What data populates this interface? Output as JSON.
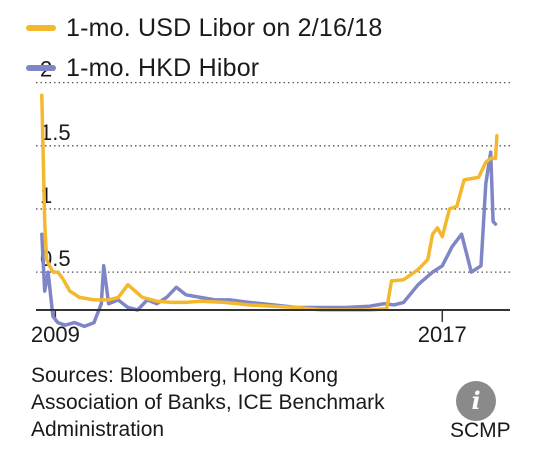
{
  "chart_data": {
    "type": "line",
    "title": "",
    "xlabel": "",
    "ylabel": "",
    "ylim": [
      0.2,
      2.1
    ],
    "xlim": [
      2008.6,
      2018.4
    ],
    "yticks": [
      0.5,
      1,
      1.5,
      2
    ],
    "xticks": [
      2009,
      2017
    ],
    "grid": "horizontal dotted",
    "legend_position": "top-left",
    "series": [
      {
        "name": "1-mo. USD Libor on 2/16/18",
        "color": "#f4b82e",
        "x": [
          2008.72,
          2008.78,
          2008.82,
          2008.88,
          2008.95,
          2009.05,
          2009.15,
          2009.3,
          2009.5,
          2009.8,
          2010.1,
          2010.3,
          2010.5,
          2010.8,
          2011.1,
          2011.4,
          2011.7,
          2012.0,
          2012.5,
          2013.0,
          2013.5,
          2014.0,
          2014.5,
          2015.0,
          2015.5,
          2015.85,
          2015.95,
          2016.2,
          2016.5,
          2016.7,
          2016.8,
          2016.9,
          2017.0,
          2017.15,
          2017.3,
          2017.45,
          2017.6,
          2017.75,
          2017.9,
          2018.0,
          2018.1,
          2018.13
        ],
        "y": [
          1.9,
          0.9,
          0.6,
          0.55,
          0.5,
          0.5,
          0.45,
          0.35,
          0.3,
          0.28,
          0.28,
          0.3,
          0.4,
          0.3,
          0.27,
          0.26,
          0.26,
          0.27,
          0.26,
          0.24,
          0.23,
          0.22,
          0.2,
          0.2,
          0.2,
          0.21,
          0.43,
          0.44,
          0.52,
          0.6,
          0.8,
          0.85,
          0.78,
          1.0,
          1.02,
          1.23,
          1.24,
          1.25,
          1.37,
          1.4,
          1.4,
          1.58
        ]
      },
      {
        "name": "1-mo. HKD Hibor",
        "color": "#7f86c8",
        "x": [
          2008.72,
          2008.78,
          2008.85,
          2008.95,
          2009.05,
          2009.2,
          2009.4,
          2009.6,
          2009.8,
          2009.95,
          2010.0,
          2010.1,
          2010.3,
          2010.5,
          2010.7,
          2010.9,
          2011.1,
          2011.3,
          2011.5,
          2011.7,
          2012.0,
          2012.3,
          2012.6,
          2013.0,
          2013.5,
          2014.0,
          2014.5,
          2015.0,
          2015.5,
          2015.8,
          2016.0,
          2016.2,
          2016.5,
          2016.8,
          2017.0,
          2017.2,
          2017.4,
          2017.6,
          2017.8,
          2017.9,
          2018.0,
          2018.05,
          2018.1
        ],
        "y": [
          0.8,
          0.35,
          0.5,
          0.15,
          0.1,
          0.08,
          0.1,
          0.07,
          0.1,
          0.25,
          0.55,
          0.25,
          0.28,
          0.22,
          0.2,
          0.28,
          0.25,
          0.3,
          0.38,
          0.32,
          0.3,
          0.28,
          0.28,
          0.26,
          0.24,
          0.22,
          0.22,
          0.22,
          0.23,
          0.25,
          0.24,
          0.26,
          0.4,
          0.5,
          0.55,
          0.7,
          0.8,
          0.5,
          0.55,
          1.2,
          1.45,
          0.9,
          0.88
        ]
      }
    ]
  },
  "sources": {
    "line1": "Sources: Bloomberg, Hong Kong",
    "line2": "Association of Banks, ICE Benchmark",
    "line3": "Administration"
  },
  "brand": "SCMP",
  "info_icon": {
    "name": "info-icon",
    "glyph": "i"
  }
}
